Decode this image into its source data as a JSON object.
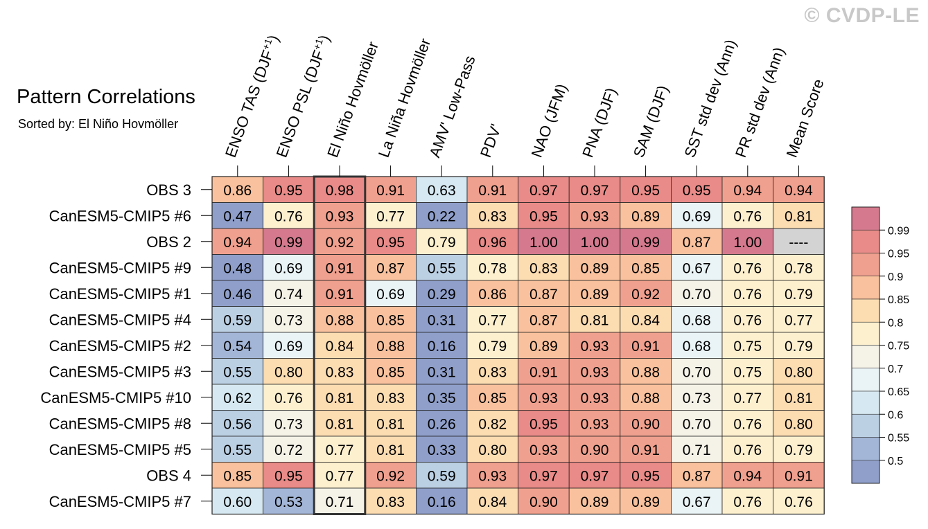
{
  "watermark": "© CVDP-LE",
  "chart_data": {
    "type": "heatmap",
    "title": "Pattern Correlations",
    "subtitle": "Sorted by: El Niño Hovmöller",
    "sorted_column_index": 2,
    "columns": [
      "ENSO TAS (DJF+1)",
      "ENSO PSL (DJF+1)",
      "El Niño Hovmöller",
      "La Niña Hovmöller",
      "AMV' Low-Pass",
      "PDV'",
      "NAO (JFM)",
      "PNA (DJF)",
      "SAM (DJF)",
      "SST std dev (Ann)",
      "PR std dev (Ann)",
      "Mean Score"
    ],
    "rows": [
      "OBS 3",
      "CanESM5-CMIP5 #6",
      "OBS 2",
      "CanESM5-CMIP5 #9",
      "CanESM5-CMIP5 #1",
      "CanESM5-CMIP5 #4",
      "CanESM5-CMIP5 #2",
      "CanESM5-CMIP5 #3",
      "CanESM5-CMIP5 #10",
      "CanESM5-CMIP5 #8",
      "CanESM5-CMIP5 #5",
      "OBS 4",
      "CanESM5-CMIP5 #7"
    ],
    "values": [
      [
        "0.86",
        "0.95",
        "0.98",
        "0.91",
        "0.63",
        "0.91",
        "0.97",
        "0.97",
        "0.95",
        "0.95",
        "0.94",
        "0.94"
      ],
      [
        "0.47",
        "0.76",
        "0.93",
        "0.77",
        "0.22",
        "0.83",
        "0.95",
        "0.93",
        "0.89",
        "0.69",
        "0.76",
        "0.81"
      ],
      [
        "0.94",
        "0.99",
        "0.92",
        "0.95",
        "0.79",
        "0.96",
        "1.00",
        "1.00",
        "0.99",
        "0.87",
        "1.00",
        "----"
      ],
      [
        "0.48",
        "0.69",
        "0.91",
        "0.87",
        "0.55",
        "0.78",
        "0.83",
        "0.89",
        "0.85",
        "0.67",
        "0.76",
        "0.78"
      ],
      [
        "0.46",
        "0.74",
        "0.91",
        "0.69",
        "0.29",
        "0.86",
        "0.87",
        "0.89",
        "0.92",
        "0.70",
        "0.76",
        "0.79"
      ],
      [
        "0.59",
        "0.73",
        "0.88",
        "0.85",
        "0.31",
        "0.77",
        "0.87",
        "0.81",
        "0.84",
        "0.68",
        "0.76",
        "0.77"
      ],
      [
        "0.54",
        "0.69",
        "0.84",
        "0.88",
        "0.16",
        "0.79",
        "0.89",
        "0.93",
        "0.91",
        "0.68",
        "0.75",
        "0.79"
      ],
      [
        "0.55",
        "0.80",
        "0.83",
        "0.85",
        "0.31",
        "0.83",
        "0.91",
        "0.93",
        "0.88",
        "0.70",
        "0.75",
        "0.80"
      ],
      [
        "0.62",
        "0.76",
        "0.81",
        "0.83",
        "0.35",
        "0.85",
        "0.93",
        "0.93",
        "0.88",
        "0.73",
        "0.77",
        "0.81"
      ],
      [
        "0.56",
        "0.73",
        "0.81",
        "0.81",
        "0.26",
        "0.82",
        "0.95",
        "0.93",
        "0.90",
        "0.70",
        "0.76",
        "0.80"
      ],
      [
        "0.55",
        "0.72",
        "0.77",
        "0.81",
        "0.33",
        "0.80",
        "0.93",
        "0.90",
        "0.91",
        "0.71",
        "0.76",
        "0.79"
      ],
      [
        "0.85",
        "0.95",
        "0.77",
        "0.92",
        "0.59",
        "0.93",
        "0.97",
        "0.97",
        "0.95",
        "0.87",
        "0.94",
        "0.91"
      ],
      [
        "0.60",
        "0.53",
        "0.71",
        "0.83",
        "0.16",
        "0.84",
        "0.90",
        "0.89",
        "0.89",
        "0.67",
        "0.76",
        "0.76"
      ]
    ],
    "missing_color": "#d3d3d3",
    "colorbar": {
      "labels": [
        "0.99",
        "0.95",
        "0.9",
        "0.85",
        "0.8",
        "0.75",
        "0.7",
        "0.65",
        "0.6",
        "0.55",
        "0.5"
      ],
      "thresholds": [
        0.5,
        0.55,
        0.6,
        0.65,
        0.7,
        0.75,
        0.8,
        0.85,
        0.9,
        0.95,
        0.99
      ],
      "colors": [
        "#8f9fca",
        "#a3b6d8",
        "#bcd0e4",
        "#d6e8f1",
        "#eaf4f7",
        "#f5f3e8",
        "#fdf0cf",
        "#fcdcb1",
        "#f9c19d",
        "#f0a08e",
        "#e98b88",
        "#d57a8e"
      ]
    }
  }
}
